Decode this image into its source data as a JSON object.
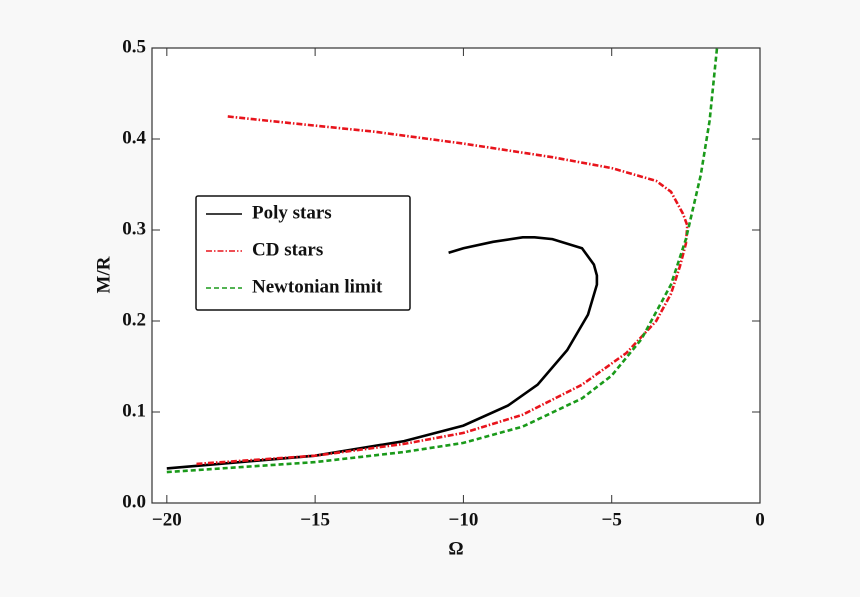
{
  "chart_data": {
    "type": "line",
    "xlabel": "Ω",
    "ylabel": "M/R",
    "xlim": [
      -20.5,
      0
    ],
    "ylim": [
      0,
      0.5
    ],
    "xticks": [
      {
        "value": -20,
        "label": "−20"
      },
      {
        "value": -15,
        "label": "−15"
      },
      {
        "value": -10,
        "label": "−10"
      },
      {
        "value": -5,
        "label": "−5"
      },
      0
    ],
    "yticks": [
      {
        "value": 0,
        "label": "0.0"
      },
      0.1,
      0.2,
      0.3,
      0.4,
      0.5
    ],
    "legend": "upper-left",
    "series": [
      {
        "name": "Poly stars",
        "color": "#000000",
        "dash": "solid",
        "x": [
          -20,
          -15,
          -12,
          -10,
          -8.5,
          -7.5,
          -6.5,
          -5.8,
          -5.5,
          -5.5,
          -5.6,
          -6,
          -7,
          -7.6,
          -8,
          -9,
          -10,
          -10.5
        ],
        "values": [
          0.038,
          0.052,
          0.068,
          0.085,
          0.107,
          0.13,
          0.168,
          0.207,
          0.24,
          0.25,
          0.262,
          0.28,
          0.29,
          0.292,
          0.292,
          0.287,
          0.28,
          0.275
        ]
      },
      {
        "name": "CD stars",
        "color": "#e8141c",
        "dash": "dashdot",
        "x": [
          -19,
          -15,
          -12,
          -10,
          -8,
          -6,
          -4.5,
          -3.5,
          -3,
          -2.7,
          -2.5,
          -2.45,
          -2.6,
          -3,
          -3.5,
          -5,
          -7,
          -10,
          -13,
          -16,
          -18
        ],
        "values": [
          0.043,
          0.052,
          0.065,
          0.077,
          0.097,
          0.13,
          0.165,
          0.2,
          0.23,
          0.26,
          0.285,
          0.305,
          0.318,
          0.342,
          0.354,
          0.368,
          0.38,
          0.395,
          0.408,
          0.418,
          0.425
        ]
      },
      {
        "name": "Newtonian limit",
        "color": "#1a9a1a",
        "dash": "dashed",
        "x": [
          -20,
          -15,
          -12,
          -10,
          -8,
          -6,
          -5,
          -4,
          -3,
          -2.5,
          -2,
          -1.7,
          -1.45
        ],
        "values": [
          0.034,
          0.045,
          0.056,
          0.066,
          0.084,
          0.115,
          0.14,
          0.18,
          0.24,
          0.29,
          0.36,
          0.42,
          0.5
        ]
      }
    ]
  }
}
